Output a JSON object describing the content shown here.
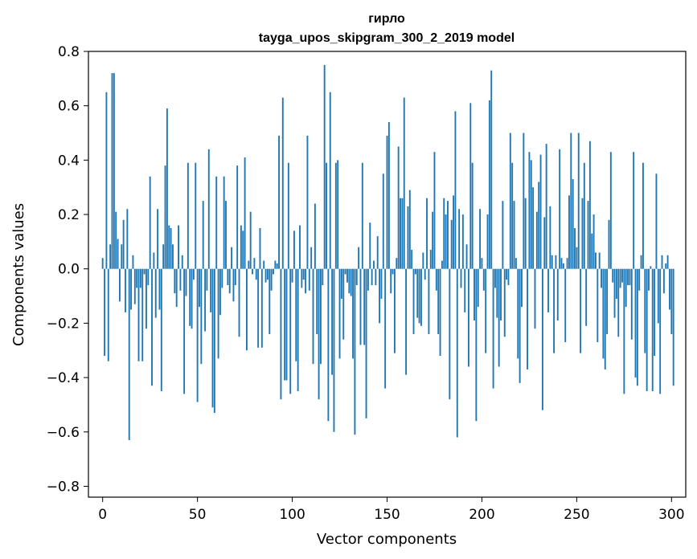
{
  "chart_data": {
    "type": "bar",
    "title": "гирло",
    "subtitle": "tayga_upos_skipgram_300_2_2019 model",
    "xlabel": "Vector components",
    "ylabel": "Components values",
    "xlim": [
      -7.5,
      307.5
    ],
    "ylim": [
      -0.84,
      0.8
    ],
    "xticks": [
      0,
      50,
      100,
      150,
      200,
      250,
      300
    ],
    "xtick_labels": [
      "0",
      "50",
      "100",
      "150",
      "200",
      "250",
      "300"
    ],
    "yticks": [
      -0.8,
      -0.6,
      -0.4,
      -0.2,
      0.0,
      0.2,
      0.4,
      0.6,
      0.8
    ],
    "ytick_labels": [
      "−0.8",
      "−0.6",
      "−0.4",
      "−0.2",
      "0.0",
      "0.2",
      "0.4",
      "0.6",
      "0.8"
    ],
    "bar_color": "#1f77b4",
    "grid": false,
    "series": [
      {
        "name": "гирло",
        "values": [
          0.04,
          -0.32,
          0.65,
          -0.34,
          0.09,
          0.72,
          0.72,
          0.21,
          0.11,
          -0.12,
          0.09,
          0.18,
          -0.16,
          0.22,
          -0.63,
          -0.15,
          0.05,
          -0.13,
          -0.07,
          -0.34,
          -0.07,
          -0.34,
          -0.02,
          -0.22,
          -0.06,
          0.34,
          -0.43,
          0.06,
          -0.18,
          0.22,
          -0.15,
          -0.45,
          0.09,
          0.38,
          0.59,
          0.16,
          0.15,
          0.09,
          -0.09,
          -0.14,
          0.16,
          -0.08,
          0.05,
          -0.46,
          -0.1,
          0.39,
          -0.21,
          -0.22,
          -0.04,
          0.39,
          -0.49,
          -0.14,
          -0.35,
          0.25,
          -0.23,
          -0.08,
          0.44,
          -0.16,
          -0.51,
          -0.53,
          0.34,
          -0.33,
          -0.17,
          -0.07,
          0.34,
          0.25,
          -0.06,
          -0.09,
          0.08,
          -0.12,
          -0.06,
          0.38,
          -0.25,
          0.16,
          0.14,
          0.41,
          -0.3,
          0.03,
          0.21,
          -0.02,
          0.04,
          -0.04,
          -0.29,
          0.15,
          -0.29,
          0.03,
          -0.05,
          -0.04,
          -0.24,
          -0.08,
          -0.02,
          0.03,
          0.02,
          0.49,
          -0.48,
          0.63,
          -0.41,
          -0.41,
          0.39,
          -0.46,
          -0.05,
          0.14,
          -0.34,
          -0.45,
          0.16,
          -0.07,
          -0.04,
          -0.09,
          0.49,
          -0.08,
          0.08,
          -0.35,
          0.24,
          -0.24,
          -0.48,
          -0.35,
          -0.06,
          0.75,
          0.39,
          -0.56,
          0.65,
          -0.39,
          -0.6,
          0.39,
          0.4,
          -0.33,
          -0.11,
          -0.26,
          -0.02,
          -0.05,
          -0.09,
          -0.1,
          -0.33,
          -0.61,
          -0.06,
          0.08,
          -0.28,
          0.39,
          -0.28,
          -0.55,
          -0.08,
          0.17,
          -0.06,
          0.03,
          -0.06,
          0.12,
          -0.2,
          -0.11,
          0.35,
          -0.44,
          0.49,
          0.54,
          -0.09,
          -0.02,
          -0.31,
          0.04,
          0.45,
          0.26,
          0.26,
          0.63,
          -0.39,
          0.23,
          0.29,
          0.07,
          -0.24,
          -0.02,
          -0.18,
          -0.2,
          -0.21,
          0.06,
          -0.04,
          0.26,
          -0.24,
          0.07,
          0.21,
          0.43,
          -0.08,
          -0.24,
          -0.32,
          0.03,
          0.26,
          0.2,
          0.25,
          -0.48,
          0.18,
          0.27,
          0.58,
          -0.62,
          0.22,
          -0.07,
          0.2,
          -0.16,
          0.09,
          -0.36,
          0.61,
          0.39,
          -0.19,
          -0.56,
          -0.14,
          0.22,
          0.04,
          -0.08,
          -0.31,
          0.2,
          0.62,
          0.73,
          -0.44,
          -0.07,
          -0.18,
          -0.36,
          -0.19,
          0.25,
          -0.25,
          -0.04,
          -0.06,
          0.5,
          0.39,
          0.25,
          0.04,
          -0.33,
          -0.42,
          -0.14,
          0.5,
          0.26,
          -0.37,
          0.43,
          0.4,
          0.3,
          -0.22,
          0.21,
          0.32,
          0.42,
          -0.52,
          0.19,
          0.46,
          -0.16,
          0.23,
          0.05,
          -0.31,
          0.05,
          -0.19,
          0.44,
          0.04,
          0.02,
          -0.27,
          0.04,
          0.27,
          0.5,
          0.33,
          0.15,
          0.08,
          0.5,
          -0.31,
          0.26,
          0.39,
          -0.21,
          0.25,
          0.47,
          0.13,
          0.2,
          0.06,
          -0.27,
          0.06,
          -0.07,
          -0.33,
          -0.37,
          -0.24,
          0.18,
          0.43,
          -0.05,
          -0.18,
          -0.11,
          -0.25,
          -0.07,
          -0.05,
          -0.46,
          -0.14,
          -0.06,
          -0.06,
          -0.26,
          0.43,
          -0.4,
          -0.43,
          -0.08,
          0.05,
          0.39,
          -0.31,
          -0.45,
          -0.08,
          0.01,
          -0.45,
          -0.32,
          0.35,
          -0.2,
          -0.46,
          0.05,
          -0.09,
          0.02,
          0.05,
          -0.15,
          -0.24,
          -0.43
        ]
      }
    ]
  }
}
